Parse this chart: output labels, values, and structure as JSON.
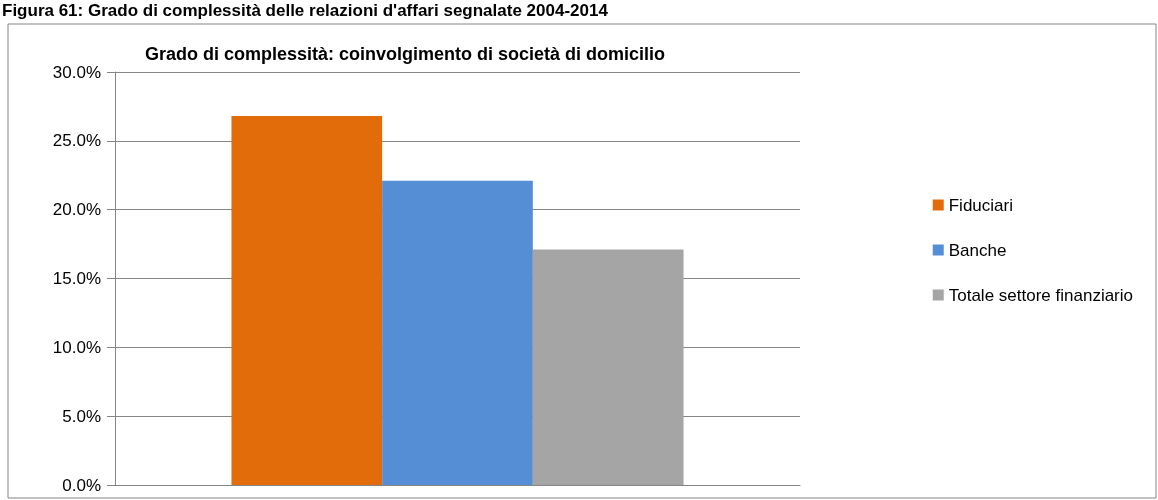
{
  "chart_data": {
    "type": "bar",
    "title": "Grado di complessità: coinvolgimento di società di domicilio",
    "annotations": [
      "Figura 61: Grado di complessità delle relazioni d'affari segnalate 2004-2014"
    ],
    "categories": [
      null
    ],
    "series": [
      {
        "name": "Fiduciari",
        "color": "#e36c0a",
        "values": [
          26.8
        ]
      },
      {
        "name": "Banche",
        "color": "#558ed5",
        "values": [
          22.1
        ]
      },
      {
        "name": "Totale settore finanziario",
        "color": "#a5a5a5",
        "values": [
          17.1
        ]
      }
    ],
    "ylim": [
      0,
      30
    ],
    "yticks": [
      {
        "value": 0,
        "label": "0.0%"
      },
      {
        "value": 5,
        "label": "5.0%"
      },
      {
        "value": 10,
        "label": "10.0%"
      },
      {
        "value": 15,
        "label": "15.0%"
      },
      {
        "value": 20,
        "label": "20.0%"
      },
      {
        "value": 25,
        "label": "25.0%"
      },
      {
        "value": 30,
        "label": "30.0%"
      }
    ],
    "grid": "y",
    "legend": "right"
  }
}
